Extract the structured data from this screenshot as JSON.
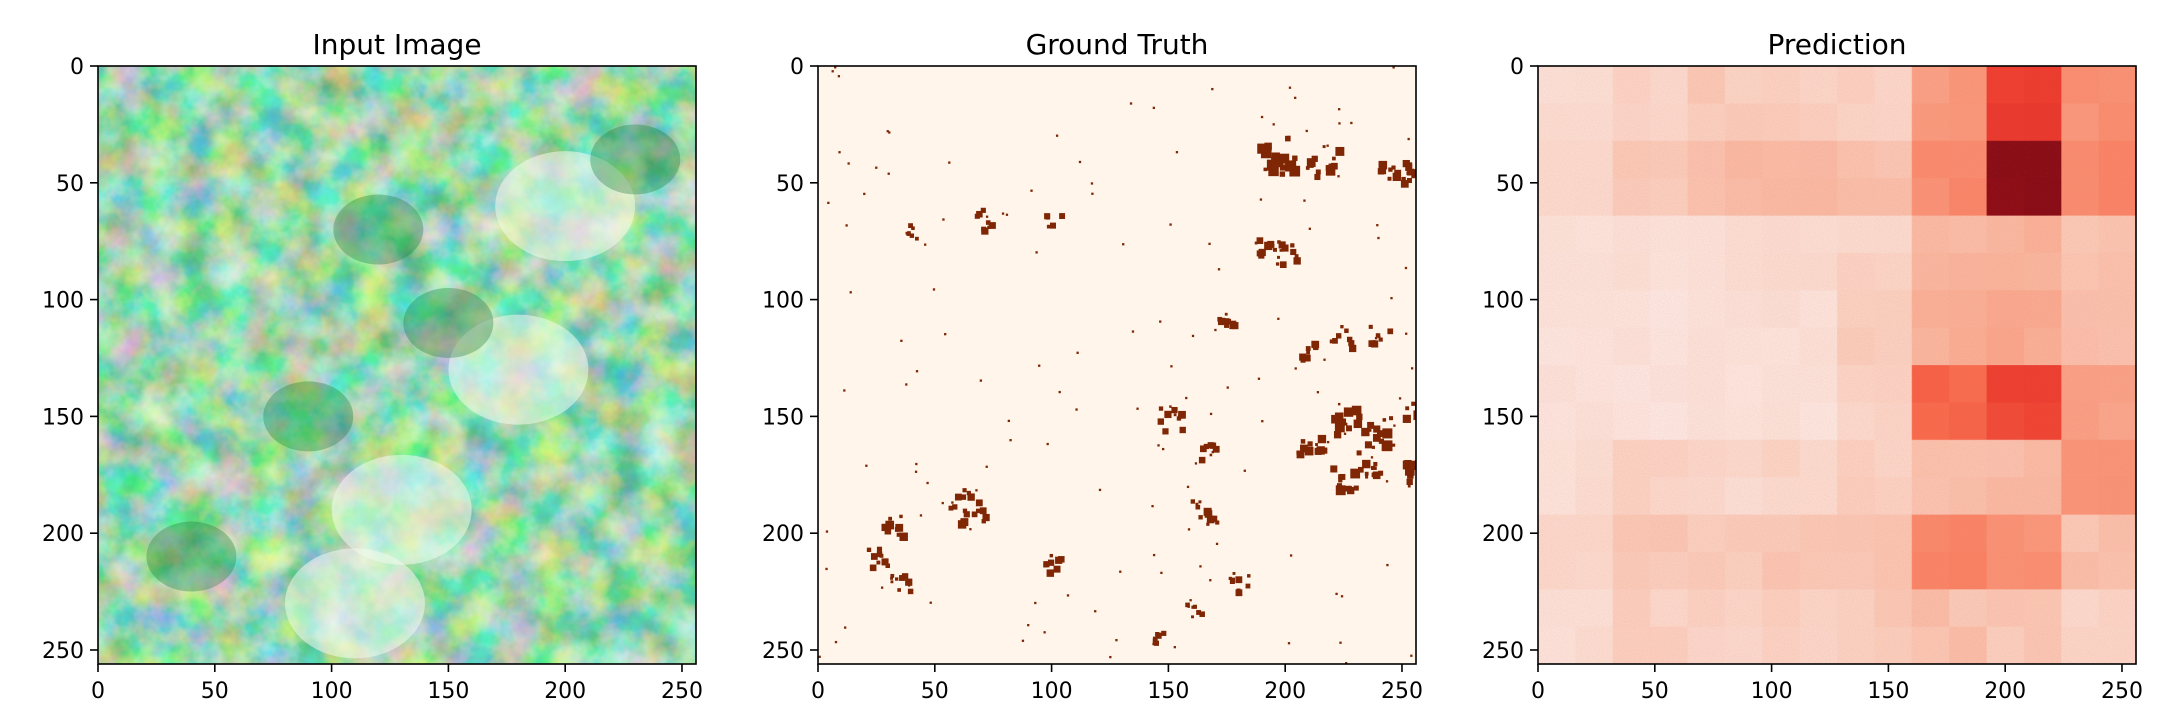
{
  "chart_data": [
    {
      "type": "heatmap",
      "title": "Input Image",
      "colormap": "Greens",
      "xlim": [
        0,
        256
      ],
      "ylim": [
        256,
        0
      ],
      "xticks": [
        0,
        50,
        100,
        150,
        200,
        250
      ],
      "yticks": [
        0,
        50,
        100,
        150,
        200,
        250
      ],
      "description_values": {
        "bright_regions_center": [
          [
            110,
            230
          ],
          [
            130,
            190
          ],
          [
            200,
            60
          ],
          [
            180,
            130
          ]
        ],
        "dark_regions_center": [
          [
            230,
            40
          ],
          [
            120,
            70
          ],
          [
            90,
            150
          ],
          [
            40,
            210
          ],
          [
            150,
            110
          ]
        ]
      }
    },
    {
      "type": "heatmap",
      "title": "Ground Truth",
      "colormap": "Oranges",
      "xlim": [
        0,
        256
      ],
      "ylim": [
        256,
        0
      ],
      "xticks": [
        0,
        50,
        100,
        150,
        200,
        250
      ],
      "yticks": [
        0,
        50,
        100,
        150,
        200,
        250
      ],
      "positive_clusters": [
        [
          195,
          38,
          8
        ],
        [
          215,
          40,
          6
        ],
        [
          245,
          45,
          5
        ],
        [
          255,
          45,
          4
        ],
        [
          192,
          78,
          5
        ],
        [
          200,
          80,
          4
        ],
        [
          175,
          110,
          4
        ],
        [
          223,
          115,
          4
        ],
        [
          240,
          115,
          4
        ],
        [
          210,
          122,
          4
        ],
        [
          150,
          150,
          5
        ],
        [
          165,
          165,
          4
        ],
        [
          210,
          160,
          5
        ],
        [
          225,
          150,
          6
        ],
        [
          240,
          155,
          7
        ],
        [
          255,
          145,
          6
        ],
        [
          225,
          175,
          6
        ],
        [
          235,
          170,
          5
        ],
        [
          255,
          175,
          6
        ],
        [
          165,
          190,
          5
        ],
        [
          65,
          190,
          5
        ],
        [
          60,
          185,
          4
        ],
        [
          30,
          197,
          5
        ],
        [
          25,
          210,
          4
        ],
        [
          35,
          220,
          4
        ],
        [
          100,
          212,
          4
        ],
        [
          160,
          233,
          3
        ],
        [
          145,
          243,
          3
        ],
        [
          180,
          220,
          4
        ],
        [
          70,
          65,
          4
        ],
        [
          100,
          65,
          3
        ],
        [
          40,
          70,
          3
        ]
      ]
    },
    {
      "type": "heatmap",
      "title": "Prediction",
      "colormap": "Reds",
      "xlim": [
        0,
        256
      ],
      "ylim": [
        256,
        0
      ],
      "xticks": [
        0,
        50,
        100,
        150,
        200,
        250
      ],
      "yticks": [
        0,
        50,
        100,
        150,
        200,
        250
      ],
      "grid_rows": 8,
      "grid_cols": 8,
      "values": [
        [
          0.08,
          0.14,
          0.16,
          0.15,
          0.14,
          0.33,
          0.62,
          0.36
        ],
        [
          0.1,
          0.16,
          0.22,
          0.24,
          0.2,
          0.38,
          0.95,
          0.4
        ],
        [
          0.05,
          0.06,
          0.08,
          0.1,
          0.12,
          0.24,
          0.26,
          0.2
        ],
        [
          0.06,
          0.05,
          0.06,
          0.06,
          0.16,
          0.26,
          0.28,
          0.22
        ],
        [
          0.06,
          0.04,
          0.05,
          0.05,
          0.14,
          0.5,
          0.6,
          0.3
        ],
        [
          0.08,
          0.14,
          0.1,
          0.12,
          0.14,
          0.2,
          0.22,
          0.34
        ],
        [
          0.12,
          0.18,
          0.16,
          0.18,
          0.18,
          0.4,
          0.36,
          0.2
        ],
        [
          0.08,
          0.14,
          0.14,
          0.14,
          0.16,
          0.2,
          0.18,
          0.14
        ]
      ]
    }
  ]
}
